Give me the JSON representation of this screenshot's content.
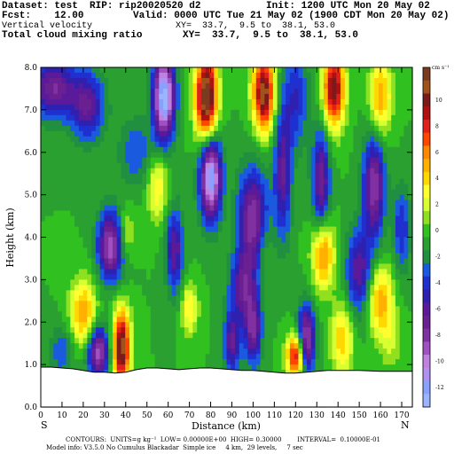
{
  "header": {
    "dataset": "Dataset: test  RIP: rip20020520 d2",
    "init": "Init: 1200 UTC Mon 20 May 02",
    "fcst": "Fcst:    12.00",
    "valid": "Valid: 0000 UTC Tue 21 May 02 (1900 CDT Mon 20 May 02)",
    "field1": "Vertical velocity",
    "xy1": "XY=  33.7,  9.5 to  38.1, 53.0",
    "field2": "Total cloud mixing ratio",
    "xy2": "XY=  33.7,  9.5 to  38.1, 53.0"
  },
  "footer": {
    "contours": "CONTOURS:  UNITS=g kg⁻¹  LOW= 0.00000E+00  HIGH= 0.30000        INTERVAL=  0.10000E-01",
    "model": "Model info: V3.5.0 No Cumulus Blackadar  Simple ice     4 km,  29 levels,     7 sec"
  },
  "chart_data": {
    "type": "heatmap",
    "xlabel": "Distance (km)",
    "ylabel": "Height (km)",
    "xlim": [
      0,
      175
    ],
    "ylim": [
      0,
      8
    ],
    "x_ticks": [
      "0",
      "10",
      "20",
      "30",
      "40",
      "50",
      "60",
      "70",
      "80",
      "90",
      "100",
      "110",
      "120",
      "130",
      "140",
      "150",
      "160",
      "170"
    ],
    "y_ticks": [
      "0.0",
      "1.0",
      "2.0",
      "3.0",
      "4.0",
      "5.0",
      "6.0",
      "7.0",
      "8.0"
    ],
    "end_labels": {
      "left": "S",
      "right": "N"
    },
    "colorbar": {
      "unit": "cm s⁻¹",
      "tick_labels": [
        "10",
        "8",
        "6",
        "4",
        "2",
        "0",
        "-2",
        "-4",
        "-6",
        "-8",
        "-10",
        "-12"
      ],
      "levels": [
        12,
        11,
        10,
        9,
        8,
        7,
        6,
        5,
        4,
        3,
        2,
        1,
        0,
        -1,
        -2,
        -3,
        -4,
        -5,
        -6,
        -7,
        -8,
        -9,
        -10,
        -11,
        -12,
        -13
      ],
      "colors": [
        "#7b3b1f",
        "#a0521a",
        "#7a1a1a",
        "#b01010",
        "#e0201a",
        "#ff4500",
        "#ff8800",
        "#ffb000",
        "#ffd800",
        "#ffff30",
        "#d8ff30",
        "#90e020",
        "#30c020",
        "#2aa030",
        "#209040",
        "#1a5adf",
        "#2030d0",
        "#3020b0",
        "#5a1a9a",
        "#6a2090",
        "#8030a0",
        "#a050c0",
        "#c080e0",
        "#b090f0",
        "#8aa0ff",
        "#9ab6ff"
      ]
    },
    "terrain_height_km": [
      0.94,
      0.94,
      0.92,
      0.9,
      0.86,
      0.82,
      0.82,
      0.8,
      0.82,
      0.88,
      0.92,
      0.92,
      0.9,
      0.88,
      0.9,
      0.92,
      0.92,
      0.9,
      0.88,
      0.86,
      0.86,
      0.84,
      0.82,
      0.8,
      0.8,
      0.82,
      0.84,
      0.86,
      0.86,
      0.86,
      0.86,
      0.85,
      0.84,
      0.84,
      0.84,
      0.84
    ],
    "grid": false
  }
}
